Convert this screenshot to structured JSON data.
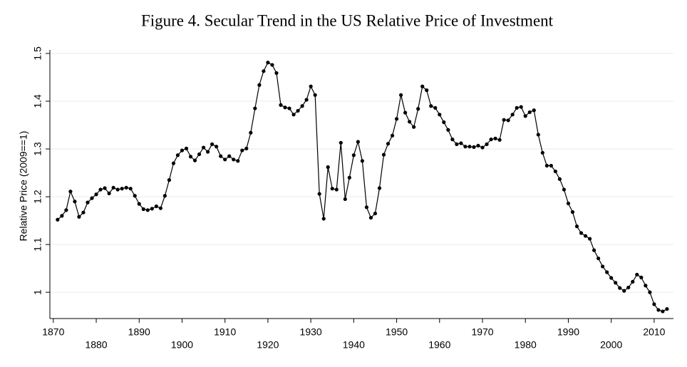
{
  "chart_data": {
    "type": "line",
    "title": "Figure 4. Secular Trend in the US Relative Price of Investment",
    "y_label": "Relative Price (2009==1)",
    "x": [
      1871,
      1872,
      1873,
      1874,
      1875,
      1876,
      1877,
      1878,
      1879,
      1880,
      1881,
      1882,
      1883,
      1884,
      1885,
      1886,
      1887,
      1888,
      1889,
      1890,
      1891,
      1892,
      1893,
      1894,
      1895,
      1896,
      1897,
      1898,
      1899,
      1900,
      1901,
      1902,
      1903,
      1904,
      1905,
      1906,
      1907,
      1908,
      1909,
      1910,
      1911,
      1912,
      1913,
      1914,
      1915,
      1916,
      1917,
      1918,
      1919,
      1920,
      1921,
      1922,
      1923,
      1924,
      1925,
      1926,
      1927,
      1928,
      1929,
      1930,
      1931,
      1932,
      1933,
      1934,
      1935,
      1936,
      1937,
      1938,
      1939,
      1940,
      1941,
      1942,
      1943,
      1944,
      1945,
      1946,
      1947,
      1948,
      1949,
      1950,
      1951,
      1952,
      1953,
      1954,
      1955,
      1956,
      1957,
      1958,
      1959,
      1960,
      1961,
      1962,
      1963,
      1964,
      1965,
      1966,
      1967,
      1968,
      1969,
      1970,
      1971,
      1972,
      1973,
      1974,
      1975,
      1976,
      1977,
      1978,
      1979,
      1980,
      1981,
      1982,
      1983,
      1984,
      1985,
      1986,
      1987,
      1988,
      1989,
      1990,
      1991,
      1992,
      1993,
      1994,
      1995,
      1996,
      1997,
      1998,
      1999,
      2000,
      2001,
      2002,
      2003,
      2004,
      2005,
      2006,
      2007,
      2008,
      2009,
      2010,
      2011,
      2012,
      2013
    ],
    "series": [
      {
        "name": "Relative Price",
        "color": "#000000",
        "values": [
          1.152,
          1.16,
          1.172,
          1.211,
          1.19,
          1.158,
          1.167,
          1.188,
          1.197,
          1.205,
          1.215,
          1.218,
          1.207,
          1.219,
          1.215,
          1.217,
          1.219,
          1.217,
          1.202,
          1.185,
          1.174,
          1.172,
          1.175,
          1.18,
          1.176,
          1.202,
          1.235,
          1.27,
          1.287,
          1.297,
          1.301,
          1.284,
          1.276,
          1.289,
          1.303,
          1.294,
          1.31,
          1.305,
          1.285,
          1.278,
          1.285,
          1.278,
          1.275,
          1.297,
          1.301,
          1.334,
          1.385,
          1.434,
          1.463,
          1.481,
          1.476,
          1.459,
          1.392,
          1.387,
          1.385,
          1.372,
          1.38,
          1.39,
          1.403,
          1.431,
          1.413,
          1.206,
          1.154,
          1.262,
          1.217,
          1.215,
          1.313,
          1.195,
          1.24,
          1.287,
          1.315,
          1.275,
          1.178,
          1.156,
          1.165,
          1.218,
          1.288,
          1.311,
          1.328,
          1.363,
          1.413,
          1.376,
          1.357,
          1.346,
          1.384,
          1.431,
          1.423,
          1.39,
          1.386,
          1.372,
          1.356,
          1.34,
          1.32,
          1.31,
          1.312,
          1.305,
          1.305,
          1.304,
          1.307,
          1.303,
          1.31,
          1.32,
          1.322,
          1.319,
          1.361,
          1.36,
          1.372,
          1.386,
          1.388,
          1.369,
          1.377,
          1.381,
          1.33,
          1.292,
          1.265,
          1.265,
          1.253,
          1.237,
          1.215,
          1.186,
          1.168,
          1.138,
          1.124,
          1.118,
          1.112,
          1.088,
          1.071,
          1.054,
          1.042,
          1.03,
          1.02,
          1.009,
          1.003,
          1.01,
          1.022,
          1.037,
          1.031,
          1.014,
          1.0,
          0.975,
          0.963,
          0.96,
          0.965
        ]
      }
    ],
    "xlim": [
      1869.2,
      2014.5
    ],
    "xticks": [
      1870,
      1880,
      1890,
      1900,
      1910,
      1920,
      1930,
      1940,
      1950,
      1960,
      1970,
      1980,
      1990,
      2000,
      2010
    ],
    "ylim": [
      0.945,
      1.5
    ],
    "yticks": [
      1,
      1.1,
      1.2,
      1.3,
      1.4,
      1.5
    ],
    "grid": true
  }
}
